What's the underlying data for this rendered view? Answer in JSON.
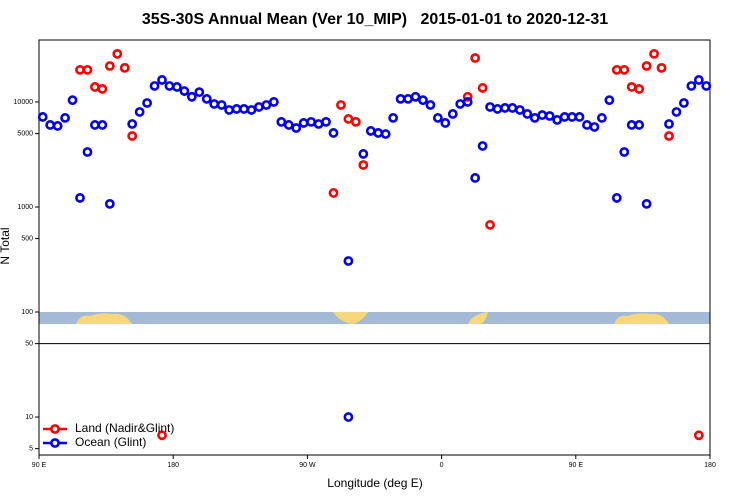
{
  "chart_data": {
    "type": "scatter",
    "title": "35S-30S Annual Mean (Ver 10_MIP)   2015-01-01 to 2020-12-31",
    "x_label": "Longitude (deg E)",
    "y_label": "N Total",
    "xlim": [
      90,
      540
    ],
    "ylim": [
      4.35,
      38900
    ],
    "log_y": true,
    "hline": 50,
    "xticks": [
      {
        "value": 90,
        "label": "90 E"
      },
      180,
      {
        "value": 270,
        "label": "90 W"
      },
      {
        "value": 360,
        "label": "0"
      },
      {
        "value": 450,
        "label": "90 E"
      },
      {
        "value": 540,
        "label": "180"
      }
    ],
    "yticks": [
      5,
      10,
      50,
      100,
      500,
      1000,
      5000,
      10000
    ],
    "legend": "lower-left",
    "series": [
      {
        "name": "Land (Nadir&Glint)",
        "color": "#ff0000",
        "x": [
          117.5,
          122.5,
          127.5,
          132.5,
          137.5,
          142.5,
          147.5,
          152.5,
          172.5,
          287.5,
          292.5,
          297.5,
          302.5,
          307.5,
          377.5,
          382.5,
          387.5,
          392.5,
          477.5,
          482.5,
          487.5,
          492.5,
          497.5,
          502.5,
          507.5,
          512.5,
          532.5
        ],
        "values": [
          20200,
          20200,
          13900,
          13300,
          22000,
          28700,
          21100,
          4740,
          6.7,
          1360,
          9360,
          6890,
          6460,
          2510,
          11200,
          26200,
          13600,
          675,
          20200,
          20200,
          13900,
          13300,
          22000,
          28700,
          21100,
          4740,
          6.7
        ]
      },
      {
        "name": "Ocean (Glint)",
        "color": "#0000ee",
        "x": [
          92.5,
          97.5,
          102.5,
          107.5,
          112.5,
          117.5,
          122.5,
          127.5,
          132.5,
          137.5,
          152.5,
          157.5,
          162.5,
          167.5,
          172.5,
          177.5,
          182.5,
          187.5,
          192.5,
          197.5,
          202.5,
          207.5,
          212.5,
          217.5,
          222.5,
          227.5,
          232.5,
          237.5,
          242.5,
          247.5,
          252.5,
          257.5,
          262.5,
          267.5,
          272.5,
          277.5,
          282.5,
          287.5,
          297.5,
          297.5,
          307.5,
          312.5,
          317.5,
          322.5,
          327.5,
          332.5,
          337.5,
          342.5,
          347.5,
          352.5,
          357.5,
          362.5,
          367.5,
          372.5,
          377.5,
          382.5,
          387.5,
          392.5,
          397.5,
          402.5,
          407.5,
          412.5,
          417.5,
          422.5,
          427.5,
          432.5,
          437.5,
          442.5,
          447.5,
          452.5,
          457.5,
          462.5,
          467.5,
          472.5,
          477.5,
          482.5,
          487.5,
          492.5,
          497.5,
          512.5,
          517.5,
          522.5,
          527.5,
          532.5,
          537.5
        ],
        "values": [
          7200,
          6040,
          5910,
          7050,
          10400,
          1220,
          3340,
          6040,
          6040,
          1070,
          6170,
          8030,
          9780,
          14200,
          16200,
          14200,
          13900,
          12700,
          11200,
          12400,
          10700,
          9570,
          9360,
          8390,
          8580,
          8580,
          8390,
          8960,
          9360,
          10000,
          6460,
          6040,
          5650,
          6310,
          6460,
          6170,
          6460,
          5070,
          306,
          10,
          3200,
          5300,
          5070,
          4950,
          7050,
          10700,
          10700,
          11200,
          10400,
          9360,
          7050,
          6310,
          7690,
          9570,
          10000,
          1890,
          3810,
          8960,
          8580,
          8770,
          8770,
          8390,
          7690,
          7050,
          7500,
          7350,
          6740,
          7200,
          7200,
          7200,
          6040,
          5780,
          7050,
          10400,
          1220,
          3340,
          6040,
          6040,
          1070,
          6170,
          8030,
          9780,
          14200,
          16200,
          14200
        ]
      }
    ]
  }
}
